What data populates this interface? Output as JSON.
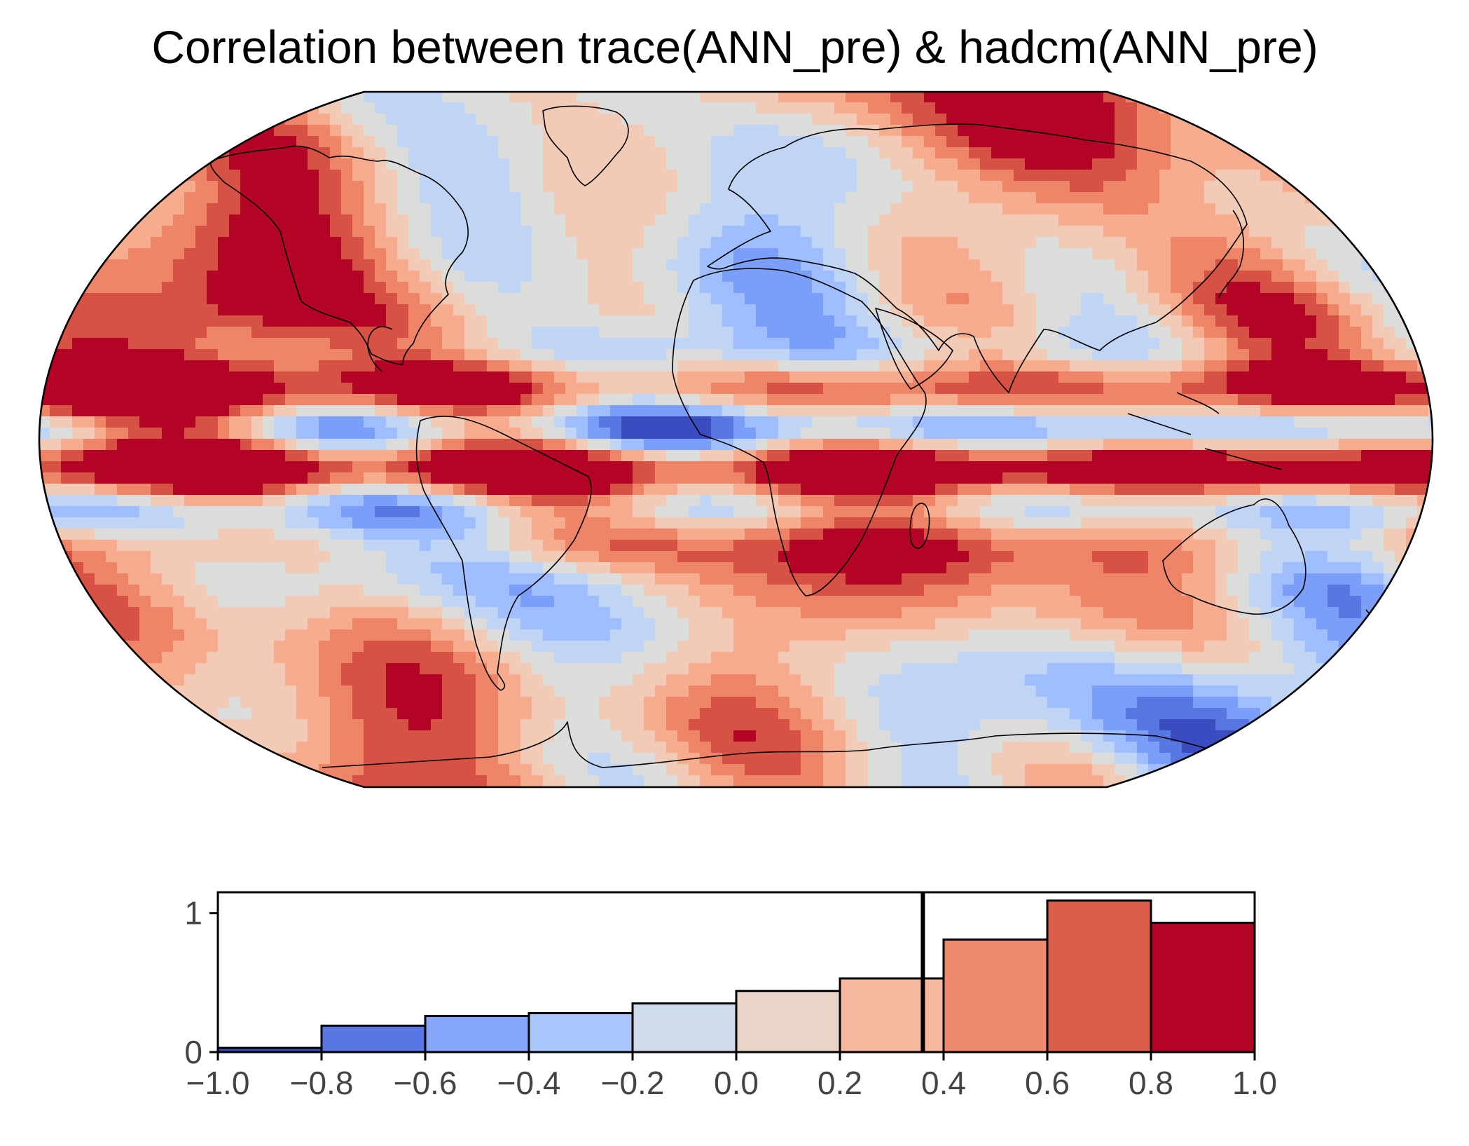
{
  "title": "Correlation between trace(ANN_pre) & hadcm(ANN_pre)",
  "colors": {
    "levels": [
      "#3b4cc0",
      "#5977e3",
      "#7b9ff9",
      "#9ebeff",
      "#c0d4f5",
      "#dddcdc",
      "#f2cbb7",
      "#f7ac8e",
      "#ee8468",
      "#d65244",
      "#b40426"
    ],
    "bin_colors": [
      "#3b4cc0",
      "#5977e3",
      "#84a7fc",
      "#aac7fd",
      "#cfdaea",
      "#ead4c8",
      "#f5b89c",
      "#ef8a6e",
      "#dc5e4a",
      "#b40426"
    ],
    "coastline": "#000000",
    "reference_line": "#000000"
  },
  "map": {
    "projection": "Robinson",
    "variable": "correlation coefficient"
  },
  "chart_data": {
    "type": "bar",
    "bin_edges": [
      -1.0,
      -0.8,
      -0.6,
      -0.4,
      -0.2,
      0.0,
      0.2,
      0.4,
      0.6,
      0.8,
      1.0
    ],
    "values": [
      0.03,
      0.19,
      0.26,
      0.28,
      0.35,
      0.44,
      0.53,
      0.81,
      1.09,
      0.93
    ],
    "reference_line_x": 0.36,
    "xlim": [
      -1.0,
      1.0
    ],
    "ylim": [
      0,
      1.15
    ],
    "xticks": [
      "−1.0",
      "−0.8",
      "−0.6",
      "−0.4",
      "−0.2",
      "0.0",
      "0.2",
      "0.4",
      "0.6",
      "0.8",
      "1.0"
    ],
    "yticks": [
      "0",
      "1"
    ],
    "ytick_values": [
      0,
      1
    ],
    "grid": false
  }
}
